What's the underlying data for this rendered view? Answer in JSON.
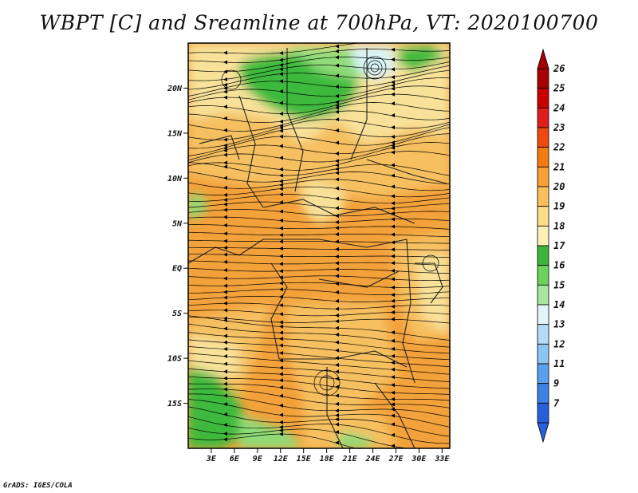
{
  "title": "WBPT [C] and Sreamline at 700hPa, VT: 2020100700",
  "footer": "GrADS: IGES/COLA",
  "map": {
    "lat_labels": [
      "20N",
      "15N",
      "10N",
      "5N",
      "EQ",
      "5S",
      "10S",
      "15S"
    ],
    "lat_values": [
      20,
      15,
      10,
      5,
      0,
      -5,
      -10,
      -15
    ],
    "lon_labels": [
      "3E",
      "6E",
      "9E",
      "12E",
      "15E",
      "18E",
      "21E",
      "24E",
      "27E",
      "30E",
      "33E"
    ],
    "lon_values": [
      3,
      6,
      9,
      12,
      15,
      18,
      21,
      24,
      27,
      30,
      33
    ],
    "lon_range": [
      0,
      34
    ],
    "lat_range": [
      -20,
      25
    ],
    "fill_colors": {
      "orange": "#f3a13a",
      "light_orange": "#f6c060",
      "pale_yellow": "#f8e29a",
      "green": "#3cba3c",
      "light_green": "#8fdc78",
      "cyan": "#d8f4f8"
    },
    "streamline_color": "#000000"
  },
  "colorbar": {
    "labels": [
      "26",
      "25",
      "24",
      "23",
      "22",
      "21",
      "20",
      "19",
      "18",
      "17",
      "16",
      "15",
      "14",
      "13",
      "12",
      "11",
      "9",
      "7"
    ],
    "colors": [
      "#a80000",
      "#c80000",
      "#e01c1c",
      "#ee4a10",
      "#f47a12",
      "#f8a034",
      "#fbbe5a",
      "#fddc8a",
      "#fdf0b4",
      "#3cb43c",
      "#6cd25c",
      "#a8e6a0",
      "#e2f6fa",
      "#b4dcf8",
      "#8cc4f2",
      "#5aa0ec",
      "#3c82e4",
      "#2860dc"
    ],
    "tip_top_color": "#a80000",
    "tip_bottom_color": "#2860dc"
  }
}
